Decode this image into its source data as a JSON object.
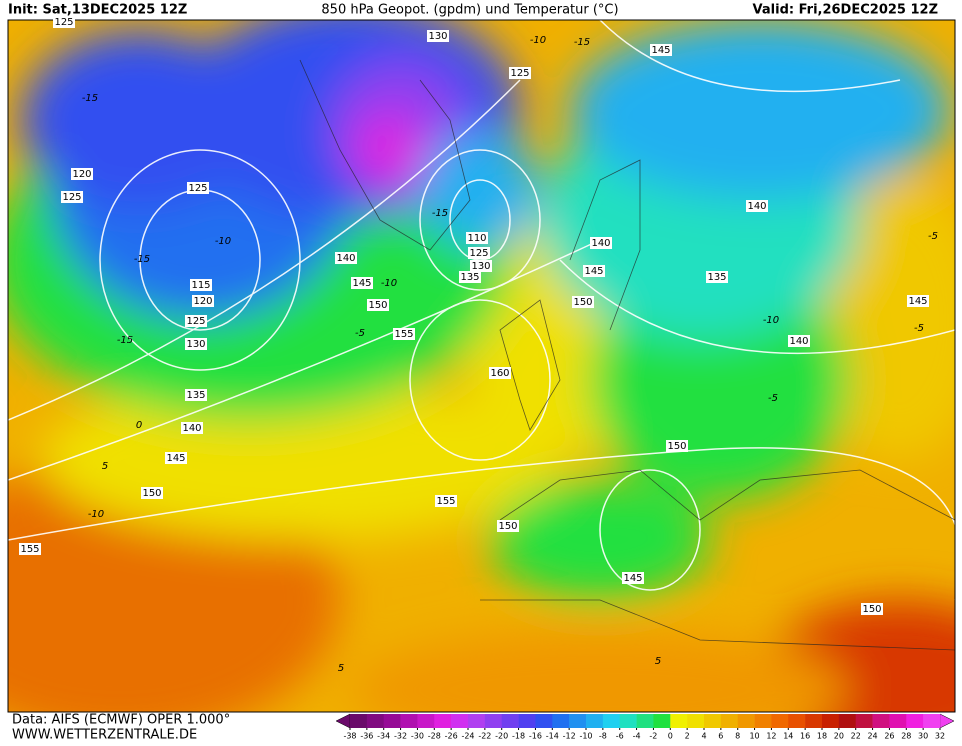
{
  "header": {
    "init": "Init: Sat,13DEC2025 12Z",
    "title": "850 hPa Geopot. (gpdm) und Temperatur (°C)",
    "valid": "Valid: Fri,26DEC2025 12Z"
  },
  "footer": {
    "source": "Data: AIFS (ECMWF) OPER 1.000°",
    "website": "WWW.WETTERZENTRALE.DE"
  },
  "legend": {
    "labels": [
      -38,
      -36,
      -34,
      -32,
      -30,
      -28,
      -26,
      -24,
      -22,
      -20,
      -18,
      -16,
      -14,
      -12,
      -10,
      -8,
      -6,
      -4,
      -2,
      0,
      2,
      4,
      6,
      8,
      10,
      12,
      14,
      16,
      18,
      20,
      22,
      24,
      26,
      28,
      30,
      32
    ],
    "colors": [
      "#6a0a6a",
      "#800a80",
      "#960a96",
      "#b010b0",
      "#c818c8",
      "#e020e0",
      "#d030f0",
      "#b040f0",
      "#9040f0",
      "#7040f0",
      "#5040f0",
      "#3050f0",
      "#2070f0",
      "#2090f0",
      "#20b0f0",
      "#20d0f0",
      "#20e0c0",
      "#20e080",
      "#20e040",
      "#f0f000",
      "#f0e000",
      "#f0c800",
      "#f0b000",
      "#f09800",
      "#f08000",
      "#f06800",
      "#e85000",
      "#d83800",
      "#c82000",
      "#b01010",
      "#c01040",
      "#d01080",
      "#e010b0",
      "#f020e0",
      "#f040f0"
    ]
  },
  "contour_labels": [
    "125",
    "130",
    "125",
    "145",
    "-10",
    "-15",
    "-15",
    "120",
    "125",
    "125",
    "-10",
    "-15",
    "115",
    "120",
    "125",
    "-15",
    "130",
    "140",
    "145",
    "-10",
    "-15",
    "110",
    "125",
    "130",
    "135",
    "150",
    "-5",
    "155",
    "140",
    "145",
    "150",
    "135",
    "140",
    "-10",
    "140",
    "-5",
    "145",
    "160",
    "135",
    "0",
    "140",
    "145",
    "5",
    "150",
    "-10",
    "155",
    "150",
    "150",
    "155",
    "145",
    "150",
    "5",
    "5",
    "-5",
    "-5"
  ]
}
